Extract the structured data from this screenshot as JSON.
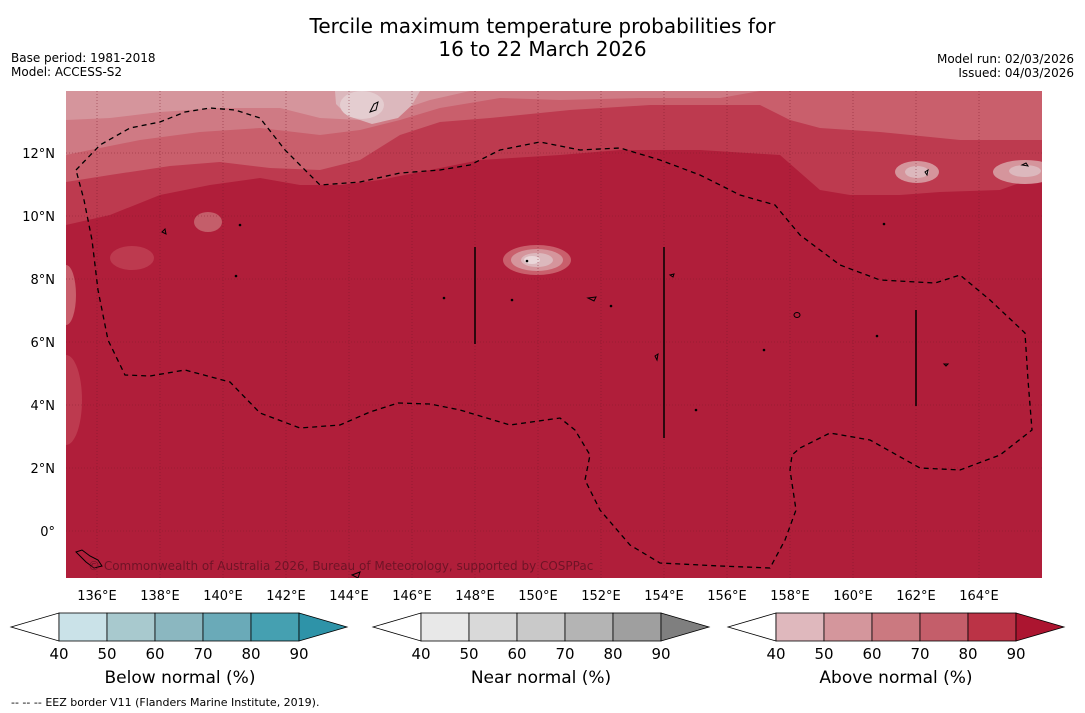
{
  "header": {
    "title_line1": "Tercile maximum temperature probabilities for",
    "title_line2": "16 to 22 March 2026",
    "base_period": "Base period: 1981-2018",
    "model": "Model: ACCESS-S2",
    "model_run": "Model run: 02/03/2026",
    "issued": "Issued: 04/03/2026"
  },
  "map": {
    "copyright": "© Commonwealth of Australia 2026, Bureau of Meteorology, supported by COSPPac",
    "lon_labels": [
      "136°E",
      "138°E",
      "140°E",
      "142°E",
      "144°E",
      "146°E",
      "148°E",
      "150°E",
      "152°E",
      "154°E",
      "156°E",
      "158°E",
      "160°E",
      "162°E",
      "164°E"
    ],
    "lat_labels": [
      "12°N",
      "10°N",
      "8°N",
      "6°N",
      "4°N",
      "2°N",
      "0°"
    ],
    "colors": {
      "a40": "#dcb8bd",
      "a50": "#d5959c",
      "a60": "#cf7a84",
      "a70": "#c95f6c",
      "a80": "#bd3a4f",
      "a90": "#b01e3a"
    }
  },
  "colorbars": [
    {
      "name": "below",
      "label": "Below normal (%)",
      "ticks": [
        "40",
        "50",
        "60",
        "70",
        "80",
        "90"
      ],
      "colors": [
        "#ffffff",
        "#cae2e8",
        "#a8c9ce",
        "#8bb7c0",
        "#6aaab8",
        "#45a0b1",
        "#2e93a8"
      ]
    },
    {
      "name": "near",
      "label": "Near normal (%)",
      "ticks": [
        "40",
        "50",
        "60",
        "70",
        "80",
        "90"
      ],
      "colors": [
        "#ffffff",
        "#e8e8e8",
        "#d9d9d9",
        "#c9c9c9",
        "#b4b4b4",
        "#9f9f9f",
        "#7f7f7f"
      ]
    },
    {
      "name": "above",
      "label": "Above normal (%)",
      "ticks": [
        "40",
        "50",
        "60",
        "70",
        "80",
        "90"
      ],
      "colors": [
        "#ffffff",
        "#dfb8bd",
        "#d4969c",
        "#cb7980",
        "#c45e6a",
        "#bb3346",
        "#ac1530"
      ]
    }
  ],
  "footer": {
    "dashes": "--  --  --",
    "eez_note": "EEZ border V11 (Flanders Marine Institute, 2019)."
  }
}
